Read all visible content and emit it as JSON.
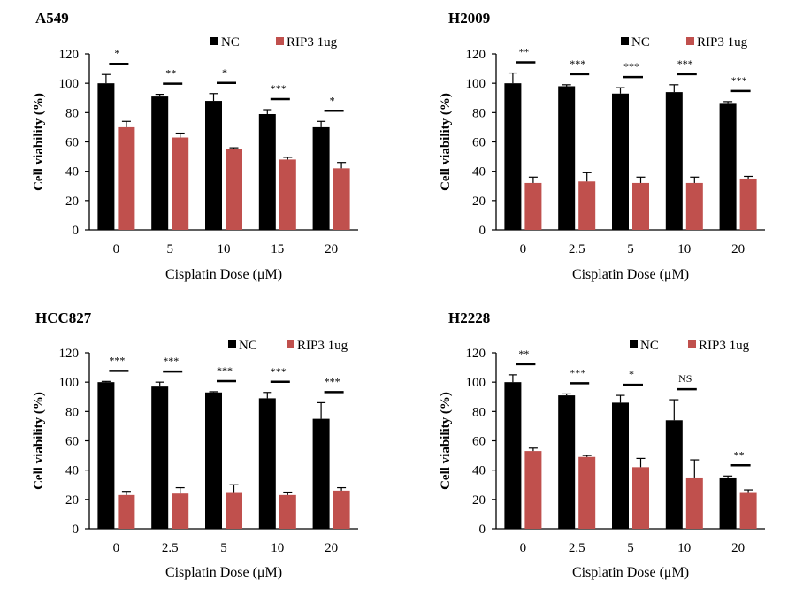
{
  "chart_data": [
    {
      "type": "bar",
      "title": "A549",
      "xlabel": "Cisplatin Dose (μM)",
      "ylabel": "Cell viability (%)",
      "ylim": [
        0,
        120
      ],
      "yticks": [
        "0",
        "20",
        "40",
        "60",
        "80",
        "100",
        "120"
      ],
      "categories": [
        "0",
        "5",
        "10",
        "15",
        "20"
      ],
      "series": [
        {
          "name": "NC",
          "color": "#000000",
          "values": [
            100,
            91,
            88,
            79,
            70
          ],
          "errors": [
            6,
            1.5,
            5,
            3,
            4
          ]
        },
        {
          "name": "RIP3 1ug",
          "color": "#c0504d",
          "values": [
            70,
            63,
            55,
            48,
            42
          ],
          "errors": [
            4,
            3,
            1,
            1.5,
            4
          ]
        }
      ],
      "significance": [
        "*",
        "**",
        "*",
        "***",
        "*"
      ],
      "legend": "top-right"
    },
    {
      "type": "bar",
      "title": "H2009",
      "xlabel": "Cisplatin Dose (μM)",
      "ylabel": "Cell viability (%)",
      "ylim": [
        0,
        120
      ],
      "yticks": [
        "0",
        "20",
        "40",
        "60",
        "80",
        "100",
        "120"
      ],
      "categories": [
        "0",
        "2.5",
        "5",
        "10",
        "20"
      ],
      "series": [
        {
          "name": "NC",
          "color": "#000000",
          "values": [
            100,
            98,
            93,
            94,
            86
          ],
          "errors": [
            7,
            1,
            4,
            5,
            1.5
          ]
        },
        {
          "name": "RIP3 1ug",
          "color": "#c0504d",
          "values": [
            32,
            33,
            32,
            32,
            35
          ],
          "errors": [
            4,
            6,
            4,
            4,
            1.5
          ]
        }
      ],
      "significance": [
        "**",
        "***",
        "***",
        "***",
        "***"
      ],
      "legend": "top-right"
    },
    {
      "type": "bar",
      "title": "HCC827",
      "xlabel": "Cisplatin Dose (μM)",
      "ylabel": "Cell viability (%)",
      "ylim": [
        0,
        120
      ],
      "yticks": [
        "0",
        "20",
        "40",
        "60",
        "80",
        "100",
        "120"
      ],
      "categories": [
        "0",
        "2.5",
        "5",
        "10",
        "20"
      ],
      "series": [
        {
          "name": "NC",
          "color": "#000000",
          "values": [
            100,
            97,
            93,
            89,
            75
          ],
          "errors": [
            0.5,
            3,
            0.5,
            4,
            11
          ]
        },
        {
          "name": "RIP3 1ug",
          "color": "#c0504d",
          "values": [
            23,
            24,
            25,
            23,
            26
          ],
          "errors": [
            2.5,
            4,
            5,
            2,
            2
          ]
        }
      ],
      "significance": [
        "***",
        "***",
        "***",
        "***",
        "***"
      ],
      "legend": "top-right"
    },
    {
      "type": "bar",
      "title": "H2228",
      "xlabel": "Cisplatin Dose (μM)",
      "ylabel": "Cell viability (%)",
      "ylim": [
        0,
        120
      ],
      "yticks": [
        "0",
        "20",
        "40",
        "60",
        "80",
        "100",
        "120"
      ],
      "categories": [
        "0",
        "2.5",
        "5",
        "10",
        "20"
      ],
      "series": [
        {
          "name": "NC",
          "color": "#000000",
          "values": [
            100,
            91,
            86,
            74,
            35
          ],
          "errors": [
            5,
            1,
            5,
            14,
            1
          ]
        },
        {
          "name": "RIP3 1ug",
          "color": "#c0504d",
          "values": [
            53,
            49,
            42,
            35,
            25
          ],
          "errors": [
            2,
            1,
            6,
            12,
            1.5
          ]
        }
      ],
      "significance": [
        "**",
        "***",
        "*",
        "NS",
        "**"
      ],
      "legend": "top-right"
    }
  ]
}
